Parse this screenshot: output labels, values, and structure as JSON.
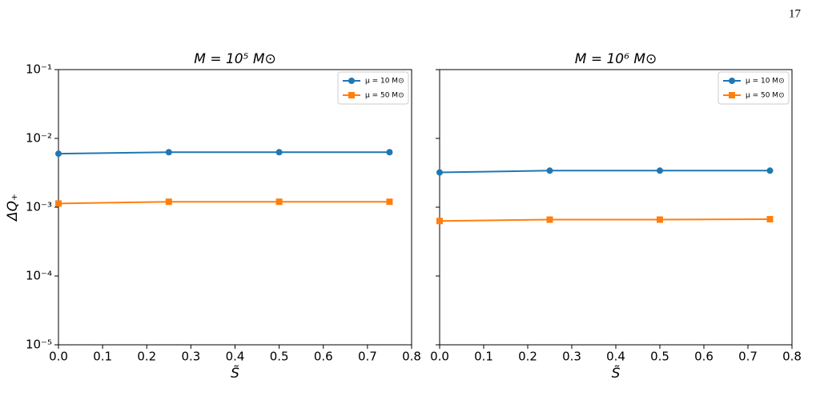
{
  "page_number": "17",
  "chart_data": [
    {
      "type": "line",
      "title": "M = 10⁵ M⊙",
      "x_label": "S̃",
      "y_label": "ΔQ₊",
      "x": [
        0,
        0.25,
        0.5,
        0.75
      ],
      "series": [
        {
          "name": "μ = 10 M⊙",
          "color": "#1f77b4",
          "marker": "circle",
          "values": [
            0.006,
            0.0063,
            0.0063,
            0.0063
          ]
        },
        {
          "name": "μ = 50 M⊙",
          "color": "#ff7f0e",
          "marker": "square",
          "values": [
            0.00113,
            0.0012,
            0.0012,
            0.0012
          ]
        }
      ],
      "xlim": [
        0,
        0.8
      ],
      "xticks": [
        {
          "value": 0,
          "label": "0.0"
        },
        0.1,
        0.2,
        0.3,
        0.4,
        0.5,
        0.6,
        0.7,
        0.8
      ],
      "ylim": [
        1e-05,
        0.1
      ],
      "y_scale": "log",
      "yticks": [
        {
          "value": 0.1,
          "label": "10⁻¹"
        },
        {
          "value": 0.01,
          "label": "10⁻²"
        },
        {
          "value": 0.001,
          "label": "10⁻³"
        },
        {
          "value": 0.0001,
          "label": "10⁻⁴"
        },
        {
          "value": 1e-05,
          "label": "10⁻⁵"
        }
      ],
      "legend": "upper right"
    },
    {
      "type": "line",
      "title": "M = 10⁶ M⊙",
      "x_label": "S̃",
      "x": [
        0,
        0.25,
        0.5,
        0.75
      ],
      "series": [
        {
          "name": "μ = 10 M⊙",
          "color": "#1f77b4",
          "marker": "circle",
          "values": [
            0.0032,
            0.0034,
            0.0034,
            0.0034
          ]
        },
        {
          "name": "μ = 50 M⊙",
          "color": "#ff7f0e",
          "marker": "square",
          "values": [
            0.00063,
            0.00066,
            0.00066,
            0.00067
          ]
        }
      ],
      "xlim": [
        0,
        0.8
      ],
      "xticks": [
        {
          "value": 0,
          "label": "0.0"
        },
        0.1,
        0.2,
        0.3,
        0.4,
        0.5,
        0.6,
        0.7,
        0.8
      ],
      "ylim": [
        1e-05,
        0.1
      ],
      "y_scale": "log",
      "yticks": [
        0.1,
        0.01,
        0.001,
        0.0001,
        1e-05
      ],
      "ytick_labels": false,
      "legend": "upper right"
    }
  ]
}
